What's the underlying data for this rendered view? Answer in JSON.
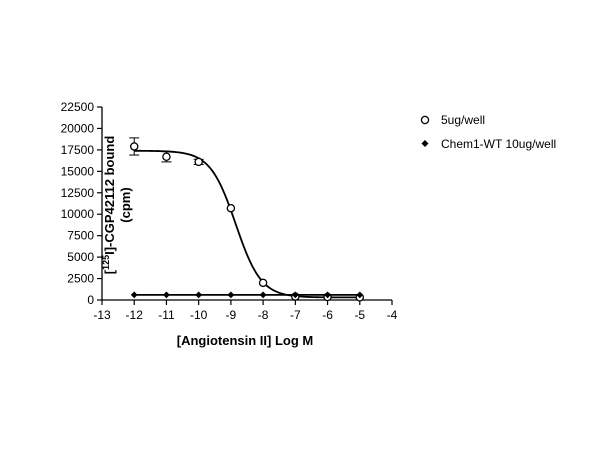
{
  "chart_data": {
    "type": "scatter",
    "xlabel": "[Angiotensin II] Log M",
    "ylabel_line1": "]-CGP42112 bound",
    "ylabel_prefix": "[",
    "ylabel_superscript": "125",
    "ylabel_element": "I",
    "ylabel_line2": "(cpm)",
    "xlim": [
      -13,
      -4
    ],
    "ylim": [
      0,
      22500
    ],
    "x_ticks": [
      -13,
      -12,
      -11,
      -10,
      -9,
      -8,
      -7,
      -6,
      -5,
      -4
    ],
    "y_ticks": [
      0,
      2500,
      5000,
      7500,
      10000,
      12500,
      15000,
      17500,
      20000,
      22500
    ],
    "grid": false,
    "legend_position": "right",
    "series": [
      {
        "name": "5ug/well",
        "marker": "open-circle",
        "color": "#000000",
        "x": [
          -12,
          -11,
          -10,
          -9,
          -8,
          -7,
          -6,
          -5
        ],
        "y": [
          17900,
          16700,
          16100,
          10700,
          2000,
          400,
          350,
          300
        ],
        "error": [
          1000,
          600,
          300,
          0,
          0,
          0,
          0,
          0
        ],
        "fit": {
          "type": "sigmoid",
          "top": 17400,
          "bottom": 300,
          "logIC50": -8.85,
          "hill": -1.1
        }
      },
      {
        "name": "Chem1-WT 10ug/well",
        "marker": "filled-diamond",
        "color": "#000000",
        "x": [
          -12,
          -11,
          -10,
          -9,
          -8,
          -7,
          -6,
          -5
        ],
        "y": [
          600,
          600,
          600,
          600,
          600,
          600,
          600,
          600
        ],
        "fit": {
          "type": "flat",
          "value": 600
        }
      }
    ]
  }
}
